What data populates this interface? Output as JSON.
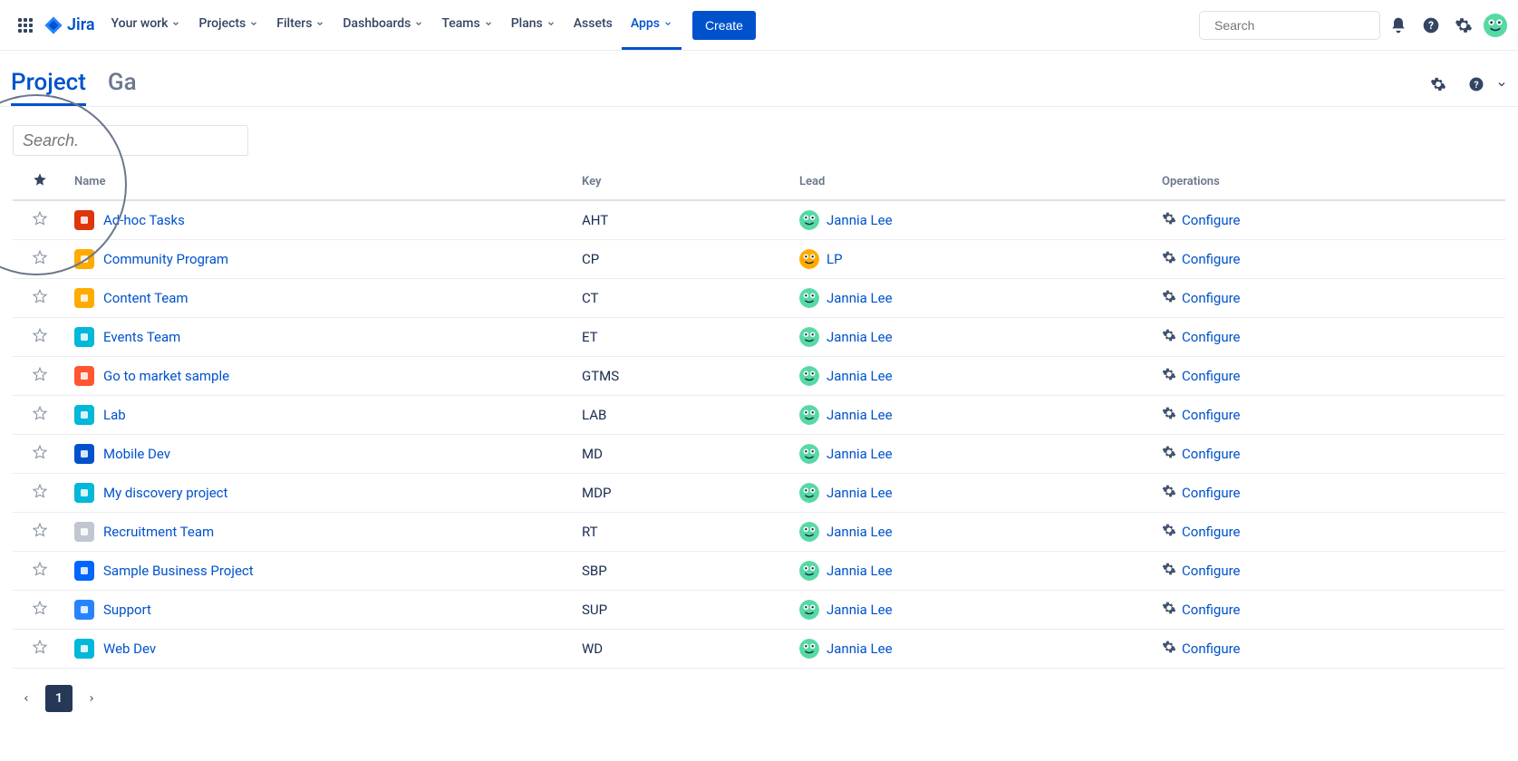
{
  "brand": {
    "name": "Jira"
  },
  "nav": {
    "items": [
      {
        "label": "Your work",
        "dropdown": true
      },
      {
        "label": "Projects",
        "dropdown": true
      },
      {
        "label": "Filters",
        "dropdown": true
      },
      {
        "label": "Dashboards",
        "dropdown": true
      },
      {
        "label": "Teams",
        "dropdown": true
      },
      {
        "label": "Plans",
        "dropdown": true
      },
      {
        "label": "Assets",
        "dropdown": false
      },
      {
        "label": "Apps",
        "dropdown": true,
        "active": true
      }
    ],
    "create_label": "Create",
    "search_placeholder": "Search"
  },
  "tabs": [
    {
      "label": "Project",
      "active": true
    },
    {
      "label": "Ga",
      "active": false
    }
  ],
  "toolbar": {
    "search_placeholder": "Search."
  },
  "columns": {
    "name": "Name",
    "key": "Key",
    "lead": "Lead",
    "operations": "Operations"
  },
  "configure_label": "Configure",
  "projects": [
    {
      "name": "Ad-hoc Tasks",
      "key": "AHT",
      "lead": "Jannia Lee",
      "icon_bg": "#de350b",
      "lead_bg": "#57d9a3"
    },
    {
      "name": "Community Program",
      "key": "CP",
      "lead": "LP",
      "icon_bg": "#ffab00",
      "lead_bg": "#ffab00"
    },
    {
      "name": "Content Team",
      "key": "CT",
      "lead": "Jannia Lee",
      "icon_bg": "#ffab00",
      "lead_bg": "#57d9a3"
    },
    {
      "name": "Events Team",
      "key": "ET",
      "lead": "Jannia Lee",
      "icon_bg": "#00b8d9",
      "lead_bg": "#57d9a3"
    },
    {
      "name": "Go to market sample",
      "key": "GTMS",
      "lead": "Jannia Lee",
      "icon_bg": "#ff5630",
      "lead_bg": "#57d9a3"
    },
    {
      "name": "Lab",
      "key": "LAB",
      "lead": "Jannia Lee",
      "icon_bg": "#00b8d9",
      "lead_bg": "#57d9a3"
    },
    {
      "name": "Mobile Dev",
      "key": "MD",
      "lead": "Jannia Lee",
      "icon_bg": "#0052cc",
      "lead_bg": "#57d9a3"
    },
    {
      "name": "My discovery project",
      "key": "MDP",
      "lead": "Jannia Lee",
      "icon_bg": "#00b8d9",
      "lead_bg": "#57d9a3"
    },
    {
      "name": "Recruitment Team",
      "key": "RT",
      "lead": "Jannia Lee",
      "icon_bg": "#c1c7d0",
      "lead_bg": "#57d9a3"
    },
    {
      "name": "Sample Business Project",
      "key": "SBP",
      "lead": "Jannia Lee",
      "icon_bg": "#0065ff",
      "lead_bg": "#57d9a3"
    },
    {
      "name": "Support",
      "key": "SUP",
      "lead": "Jannia Lee",
      "icon_bg": "#2684ff",
      "lead_bg": "#57d9a3"
    },
    {
      "name": "Web Dev",
      "key": "WD",
      "lead": "Jannia Lee",
      "icon_bg": "#00b8d9",
      "lead_bg": "#57d9a3"
    }
  ],
  "pagination": {
    "current": "1"
  },
  "colors": {
    "primary": "#0052cc",
    "text": "#172b4d",
    "subtle": "#6b778c",
    "border": "#ebecf0"
  }
}
